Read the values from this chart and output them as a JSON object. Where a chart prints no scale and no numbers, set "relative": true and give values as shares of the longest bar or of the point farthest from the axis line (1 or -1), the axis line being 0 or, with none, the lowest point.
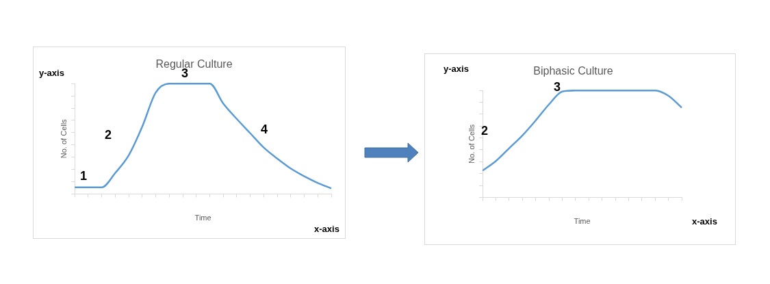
{
  "chart_data": [
    {
      "type": "line",
      "title": "Regular Culture",
      "xlabel": "Time",
      "ylabel": "No. of Cells",
      "relative": true,
      "grid": false,
      "legend": false,
      "categories": [
        null,
        null,
        null,
        null,
        null,
        null,
        null,
        null,
        null,
        null,
        null,
        null,
        null,
        null,
        null,
        null,
        null,
        null,
        null,
        null
      ],
      "series": [
        {
          "color": "#5b9bd5",
          "values": [
            0.06,
            0.06,
            0.06,
            0.19,
            0.35,
            0.61,
            0.92,
            1,
            1,
            1,
            1,
            0.82,
            0.68,
            0.55,
            0.42,
            0.32,
            0.23,
            0.16,
            0.1,
            0.05
          ]
        }
      ],
      "annotations": [
        "y-axis",
        "1",
        "2",
        "3",
        "4",
        "x-axis"
      ]
    },
    {
      "type": "line",
      "title": "Biphasic Culture",
      "xlabel": "Time",
      "ylabel": "No. of Cells",
      "relative": true,
      "grid": false,
      "legend": false,
      "categories": [
        null,
        null,
        null,
        null,
        null,
        null,
        null,
        null,
        null,
        null,
        null,
        null,
        null,
        null,
        null,
        null
      ],
      "series": [
        {
          "color": "#5b9bd5",
          "values": [
            0.25,
            0.34,
            0.46,
            0.58,
            0.72,
            0.87,
            0.99,
            1,
            1,
            1,
            1,
            1,
            1,
            1,
            0.95,
            0.84
          ]
        }
      ],
      "annotations": [
        "y-axis",
        "2",
        "3",
        "x-axis"
      ]
    }
  ]
}
